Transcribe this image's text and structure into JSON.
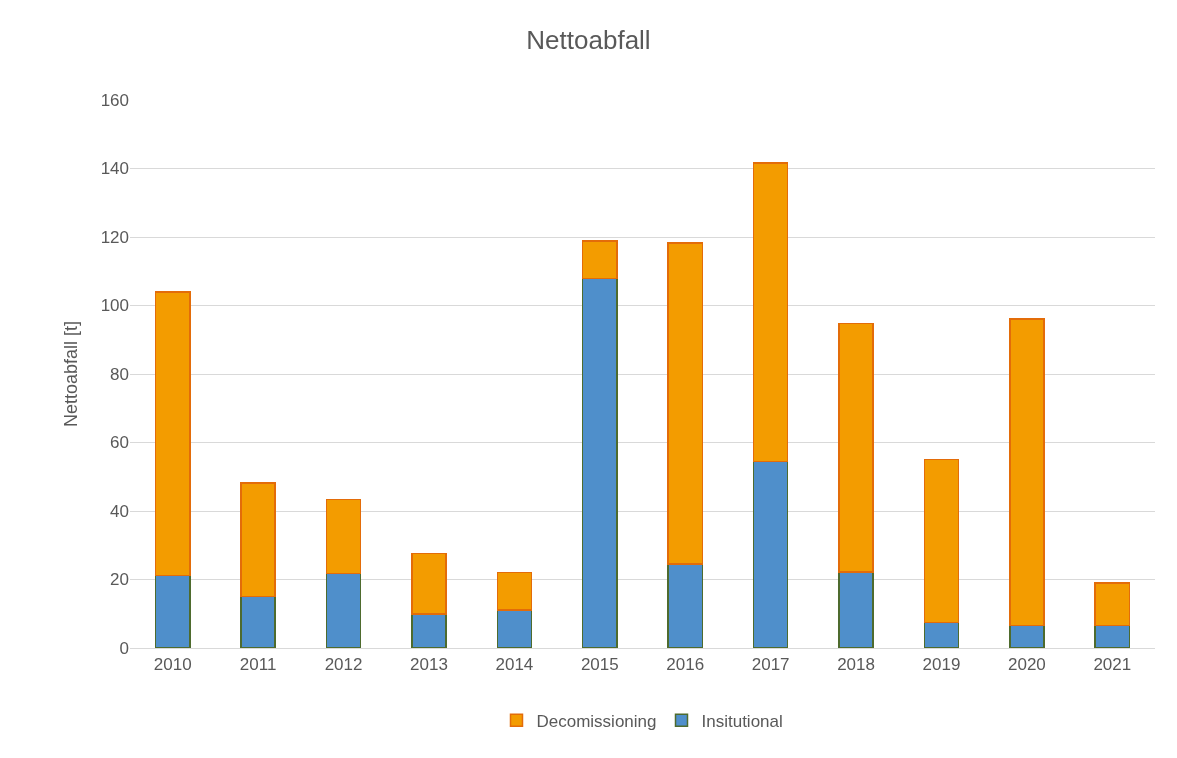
{
  "chart_data": {
    "type": "bar",
    "title": "Nettoabfall",
    "ylabel": "Nettoabfall [t]",
    "categories": [
      "2010",
      "2011",
      "2012",
      "2013",
      "2014",
      "2015",
      "2016",
      "2017",
      "2018",
      "2019",
      "2020",
      "2021"
    ],
    "stacked": true,
    "series": [
      {
        "name": "Insitutional",
        "color": "#4f8fcb",
        "values": [
          21.2,
          15.1,
          21.7,
          10.0,
          11.1,
          107.9,
          24.5,
          54.5,
          22.2,
          7.4,
          6.6,
          6.6
        ]
      },
      {
        "name": "Decomissioning",
        "color": "#f39c00",
        "values": [
          82.8,
          33.1,
          21.6,
          17.6,
          11.0,
          10.9,
          93.8,
          87.1,
          72.6,
          47.7,
          89.4,
          12.4
        ]
      }
    ],
    "ylim": [
      0,
      160
    ],
    "yticks": [
      0,
      20,
      40,
      60,
      80,
      100,
      120,
      140,
      160
    ],
    "grid": "y",
    "legend": "bottom"
  }
}
